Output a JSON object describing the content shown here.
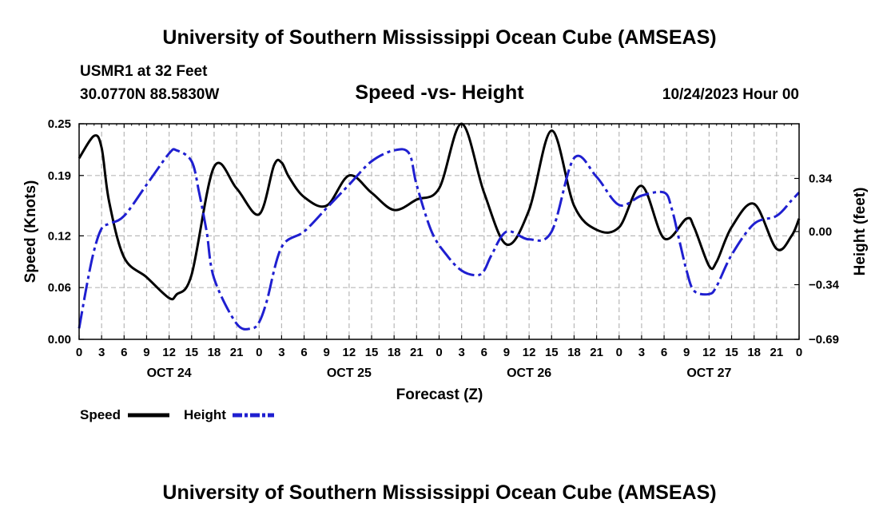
{
  "header": {
    "title": "University of Southern Mississippi Ocean Cube (AMSEAS)",
    "station": "USMR1 at 32 Feet",
    "coords": "30.0770N  88.5830W",
    "datetime": "10/24/2023 Hour 00",
    "footer_title": "University of Southern Mississippi Ocean Cube (AMSEAS)"
  },
  "colors": {
    "speed": "#000000",
    "height": "#1f1fd0",
    "grid": "#b8b8b8"
  },
  "chart_data": {
    "type": "line",
    "title": "Speed -vs- Height",
    "xlabel": "Forecast (Z)",
    "ylabel": "Speed (Knots)",
    "y2label": "Height (feet)",
    "xlim": [
      0,
      96
    ],
    "ylim": [
      0,
      0.25
    ],
    "y2lim": [
      -0.69,
      0.69
    ],
    "yticks": [
      0.0,
      0.06,
      0.12,
      0.19,
      0.25
    ],
    "ytick_labels": [
      "0.00",
      "0.06",
      "0.12",
      "0.19",
      "0.25"
    ],
    "y2ticks": [
      -0.69,
      -0.34,
      0.0,
      0.34
    ],
    "y2tick_labels": [
      "−0.69",
      "−0.34",
      "0.00",
      "0.34"
    ],
    "xticks": [
      0,
      3,
      6,
      9,
      12,
      15,
      18,
      21,
      24,
      27,
      30,
      33,
      36,
      39,
      42,
      45,
      48,
      51,
      54,
      57,
      60,
      63,
      66,
      69,
      72,
      75,
      78,
      81,
      84,
      87,
      90,
      93,
      96
    ],
    "xtick_labels": [
      "0",
      "3",
      "6",
      "9",
      "12",
      "15",
      "18",
      "21",
      "0",
      "3",
      "6",
      "9",
      "12",
      "15",
      "18",
      "21",
      "0",
      "3",
      "6",
      "9",
      "12",
      "15",
      "18",
      "21",
      "0",
      "3",
      "6",
      "9",
      "12",
      "15",
      "18",
      "21",
      "0"
    ],
    "day_labels": [
      {
        "hour": 12,
        "label": "OCT 24"
      },
      {
        "hour": 36,
        "label": "OCT 25"
      },
      {
        "hour": 60,
        "label": "OCT 26"
      },
      {
        "hour": 84,
        "label": "OCT 27"
      }
    ],
    "series": [
      {
        "name": "Speed",
        "axis": "left",
        "style": "solid",
        "x": [
          0,
          2,
          3,
          4,
          6,
          9,
          12,
          13,
          15,
          18,
          21,
          24,
          26,
          27,
          28,
          30,
          33,
          36,
          39,
          42,
          45,
          48,
          51,
          54,
          57,
          60,
          63,
          66,
          69,
          72,
          75,
          78,
          81,
          82,
          84,
          85,
          87,
          90,
          93,
          95,
          96
        ],
        "y": [
          0.21,
          0.236,
          0.222,
          0.16,
          0.095,
          0.072,
          0.048,
          0.052,
          0.075,
          0.2,
          0.175,
          0.145,
          0.202,
          0.205,
          0.188,
          0.165,
          0.155,
          0.19,
          0.17,
          0.15,
          0.162,
          0.175,
          0.25,
          0.17,
          0.11,
          0.15,
          0.242,
          0.155,
          0.127,
          0.13,
          0.178,
          0.117,
          0.14,
          0.13,
          0.085,
          0.09,
          0.13,
          0.157,
          0.105,
          0.12,
          0.14
        ]
      },
      {
        "name": "Height",
        "axis": "right",
        "style": "dashdot",
        "x": [
          0,
          1,
          2,
          3,
          4,
          6,
          9,
          12,
          13,
          15,
          16,
          17,
          18,
          21,
          23,
          24,
          25,
          27,
          30,
          33,
          36,
          39,
          42,
          44,
          45,
          47,
          49,
          51,
          53,
          54,
          55,
          57,
          60,
          63,
          66,
          69,
          72,
          75,
          78,
          79,
          80,
          81,
          82,
          84,
          85,
          87,
          90,
          93,
          95,
          96
        ],
        "y": [
          -0.62,
          -0.35,
          -0.12,
          0.02,
          0.05,
          0.1,
          0.3,
          0.5,
          0.52,
          0.45,
          0.25,
          0.0,
          -0.3,
          -0.59,
          -0.62,
          -0.58,
          -0.45,
          -0.1,
          0.0,
          0.15,
          0.3,
          0.45,
          0.52,
          0.5,
          0.3,
          0.0,
          -0.15,
          -0.25,
          -0.28,
          -0.25,
          -0.15,
          0.0,
          -0.05,
          0.0,
          0.47,
          0.35,
          0.17,
          0.23,
          0.25,
          0.15,
          -0.05,
          -0.25,
          -0.38,
          -0.4,
          -0.35,
          -0.15,
          0.05,
          0.1,
          0.2,
          0.25
        ]
      }
    ]
  },
  "legend": {
    "speed_label": "Speed",
    "height_label": "Height"
  }
}
